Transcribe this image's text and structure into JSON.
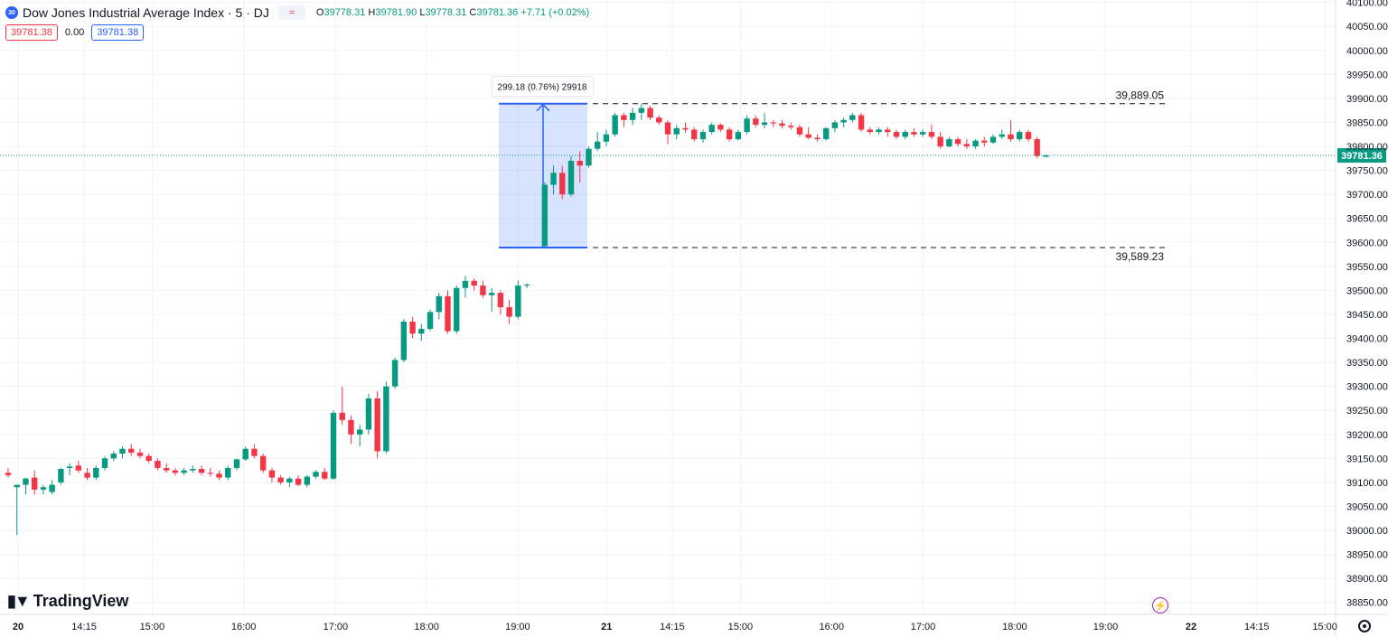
{
  "legend": {
    "symbol_badge": "30",
    "title": "Dow Jones Industrial Average Index · 5 · DJ",
    "mode_icon": "≈",
    "o_label": "O",
    "o": "39778.31",
    "h_label": "H",
    "h": "39781.90",
    "l_label": "L",
    "l": "39778.31",
    "c_label": "C",
    "c": "39781.36",
    "change": "+7.71 (+0.02%)",
    "bid": "39781.38",
    "spread": "0.00",
    "ask": "39781.38"
  },
  "brand": {
    "logo_text": "TradingView"
  },
  "colors": {
    "up": "#089981",
    "down": "#f23645",
    "accent": "#2962ff",
    "price_line": "#089981"
  },
  "chart_data": {
    "type": "candlestick",
    "symbol": "DJ",
    "interval": "5",
    "ylim": [
      38825,
      40105
    ],
    "y_ticks": [
      38850,
      38900,
      38950,
      39000,
      39050,
      39100,
      39150,
      39200,
      39250,
      39300,
      39350,
      39400,
      39450,
      39500,
      39550,
      39600,
      39650,
      39700,
      39750,
      39800,
      39850,
      39900,
      39950,
      40000,
      40050,
      40100
    ],
    "x_ticks": [
      {
        "label": "20",
        "pos": 0.0,
        "bold": true
      },
      {
        "label": "14:15",
        "pos": 0.0562
      },
      {
        "label": "15:00",
        "pos": 0.1141
      },
      {
        "label": "16:00",
        "pos": 0.192
      },
      {
        "label": "17:00",
        "pos": 0.2703
      },
      {
        "label": "18:00",
        "pos": 0.3478
      },
      {
        "label": "19:00",
        "pos": 0.4253
      },
      {
        "label": "21",
        "pos": 0.501,
        "bold": true
      },
      {
        "label": "14:15",
        "pos": 0.5568
      },
      {
        "label": "15:00",
        "pos": 0.6149
      },
      {
        "label": "16:00",
        "pos": 0.6925
      },
      {
        "label": "17:00",
        "pos": 0.7704
      },
      {
        "label": "18:00",
        "pos": 0.8484
      },
      {
        "label": "19:00",
        "pos": 0.9258
      },
      {
        "label": "22",
        "pos": 0.9985,
        "bold": true
      },
      {
        "label": "14:15",
        "pos": 1.0544
      },
      {
        "label": "15:00",
        "pos": 1.1124
      }
    ],
    "last_price": 39781.36,
    "range_measure": {
      "label": "299.18 (0.76%) 29918",
      "low": 39589.23,
      "high": 39889.05
    },
    "levels": [
      {
        "price": 39889.05,
        "label": "39,889.05"
      },
      {
        "price": 39589.23,
        "label": "39,589.23"
      }
    ],
    "candles": [
      [
        39120,
        39130,
        39110,
        39115
      ],
      [
        39090,
        39095,
        38990,
        39095
      ],
      [
        39095,
        39110,
        39075,
        39108
      ],
      [
        39110,
        39125,
        39075,
        39085
      ],
      [
        39085,
        39095,
        39075,
        39090
      ],
      [
        39080,
        39105,
        39075,
        39095
      ],
      [
        39100,
        39130,
        39095,
        39128
      ],
      [
        39130,
        39140,
        39115,
        39133
      ],
      [
        39135,
        39145,
        39120,
        39125
      ],
      [
        39120,
        39130,
        39105,
        39110
      ],
      [
        39110,
        39135,
        39105,
        39130
      ],
      [
        39130,
        39155,
        39125,
        39150
      ],
      [
        39150,
        39165,
        39145,
        39160
      ],
      [
        39160,
        39175,
        39150,
        39170
      ],
      [
        39170,
        39180,
        39155,
        39162
      ],
      [
        39162,
        39170,
        39150,
        39155
      ],
      [
        39155,
        39160,
        39140,
        39145
      ],
      [
        39145,
        39150,
        39125,
        39130
      ],
      [
        39130,
        39140,
        39120,
        39125
      ],
      [
        39125,
        39130,
        39115,
        39120
      ],
      [
        39120,
        39130,
        39115,
        39125
      ],
      [
        39125,
        39135,
        39120,
        39128
      ],
      [
        39128,
        39135,
        39115,
        39120
      ],
      [
        39120,
        39130,
        39112,
        39118
      ],
      [
        39118,
        39125,
        39105,
        39110
      ],
      [
        39110,
        39135,
        39105,
        39130
      ],
      [
        39130,
        39150,
        39125,
        39148
      ],
      [
        39148,
        39175,
        39145,
        39170
      ],
      [
        39170,
        39180,
        39150,
        39155
      ],
      [
        39155,
        39160,
        39120,
        39125
      ],
      [
        39125,
        39130,
        39100,
        39110
      ],
      [
        39110,
        39115,
        39095,
        39100
      ],
      [
        39100,
        39112,
        39090,
        39108
      ],
      [
        39108,
        39115,
        39092,
        39095
      ],
      [
        39095,
        39115,
        39090,
        39112
      ],
      [
        39112,
        39125,
        39108,
        39122
      ],
      [
        39122,
        39130,
        39105,
        39108
      ],
      [
        39108,
        39250,
        39105,
        39245
      ],
      [
        39245,
        39300,
        39220,
        39230
      ],
      [
        39230,
        39240,
        39180,
        39200
      ],
      [
        39200,
        39220,
        39175,
        39210
      ],
      [
        39210,
        39285,
        39200,
        39275
      ],
      [
        39275,
        39290,
        39150,
        39165
      ],
      [
        39165,
        39310,
        39160,
        39300
      ],
      [
        39300,
        39360,
        39295,
        39355
      ],
      [
        39355,
        39440,
        39350,
        39435
      ],
      [
        39435,
        39445,
        39400,
        39410
      ],
      [
        39410,
        39430,
        39395,
        39420
      ],
      [
        39420,
        39460,
        39415,
        39455
      ],
      [
        39455,
        39495,
        39440,
        39488
      ],
      [
        39488,
        39500,
        39410,
        39415
      ],
      [
        39415,
        39510,
        39410,
        39505
      ],
      [
        39505,
        39530,
        39485,
        39520
      ],
      [
        39520,
        39525,
        39500,
        39510
      ],
      [
        39510,
        39520,
        39485,
        39490
      ],
      [
        39490,
        39505,
        39455,
        39495
      ],
      [
        39495,
        39500,
        39450,
        39465
      ],
      [
        39465,
        39480,
        39430,
        39445
      ],
      [
        39445,
        39520,
        39440,
        39510
      ],
      [
        39510,
        39515,
        39505,
        39512
      ],
      [
        39592,
        39725,
        39589,
        39720
      ],
      [
        39720,
        39760,
        39700,
        39745
      ],
      [
        39745,
        39760,
        39690,
        39700
      ],
      [
        39700,
        39780,
        39695,
        39770
      ],
      [
        39770,
        39790,
        39725,
        39760
      ],
      [
        39760,
        39800,
        39755,
        39795
      ],
      [
        39795,
        39830,
        39790,
        39810
      ],
      [
        39810,
        39835,
        39800,
        39825
      ],
      [
        39825,
        39870,
        39820,
        39865
      ],
      [
        39865,
        39870,
        39840,
        39855
      ],
      [
        39855,
        39880,
        39845,
        39870
      ],
      [
        39870,
        39889,
        39855,
        39880
      ],
      [
        39880,
        39885,
        39855,
        39860
      ],
      [
        39860,
        39865,
        39845,
        39850
      ],
      [
        39850,
        39855,
        39805,
        39825
      ],
      [
        39825,
        39845,
        39815,
        39838
      ],
      [
        39838,
        39850,
        39828,
        39835
      ],
      [
        39835,
        39840,
        39810,
        39815
      ],
      [
        39815,
        39835,
        39808,
        39830
      ],
      [
        39830,
        39850,
        39825,
        39845
      ],
      [
        39845,
        39848,
        39830,
        39835
      ],
      [
        39835,
        39840,
        39810,
        39815
      ],
      [
        39815,
        39835,
        39812,
        39830
      ],
      [
        39830,
        39865,
        39825,
        39858
      ],
      [
        39858,
        39865,
        39840,
        39845
      ],
      [
        39845,
        39870,
        39838,
        39850
      ],
      [
        39850,
        39855,
        39840,
        39848
      ],
      [
        39848,
        39855,
        39838,
        39843
      ],
      [
        39843,
        39850,
        39835,
        39840
      ],
      [
        39840,
        39845,
        39820,
        39825
      ],
      [
        39825,
        39840,
        39815,
        39818
      ],
      [
        39818,
        39825,
        39810,
        39815
      ],
      [
        39815,
        39840,
        39812,
        39838
      ],
      [
        39838,
        39855,
        39830,
        39850
      ],
      [
        39850,
        39860,
        39840,
        39855
      ],
      [
        39855,
        39870,
        39850,
        39865
      ],
      [
        39865,
        39870,
        39830,
        39835
      ],
      [
        39835,
        39840,
        39825,
        39830
      ],
      [
        39830,
        39840,
        39825,
        39835
      ],
      [
        39835,
        39840,
        39820,
        39830
      ],
      [
        39830,
        39835,
        39815,
        39820
      ],
      [
        39820,
        39835,
        39815,
        39830
      ],
      [
        39830,
        39838,
        39820,
        39825
      ],
      [
        39825,
        39835,
        39820,
        39830
      ],
      [
        39830,
        39845,
        39815,
        39820
      ],
      [
        39820,
        39830,
        39795,
        39800
      ],
      [
        39800,
        39820,
        39798,
        39815
      ],
      [
        39815,
        39820,
        39800,
        39805
      ],
      [
        39805,
        39815,
        39795,
        39800
      ],
      [
        39800,
        39815,
        39795,
        39812
      ],
      [
        39812,
        39820,
        39800,
        39808
      ],
      [
        39808,
        39825,
        39805,
        39820
      ],
      [
        39820,
        39835,
        39815,
        39825
      ],
      [
        39825,
        39855,
        39810,
        39815
      ],
      [
        39815,
        39835,
        39810,
        39830
      ],
      [
        39830,
        39835,
        39810,
        39815
      ],
      [
        39815,
        39820,
        39775,
        39780
      ],
      [
        39778.31,
        39781.9,
        39778.31,
        39781.36
      ]
    ]
  }
}
